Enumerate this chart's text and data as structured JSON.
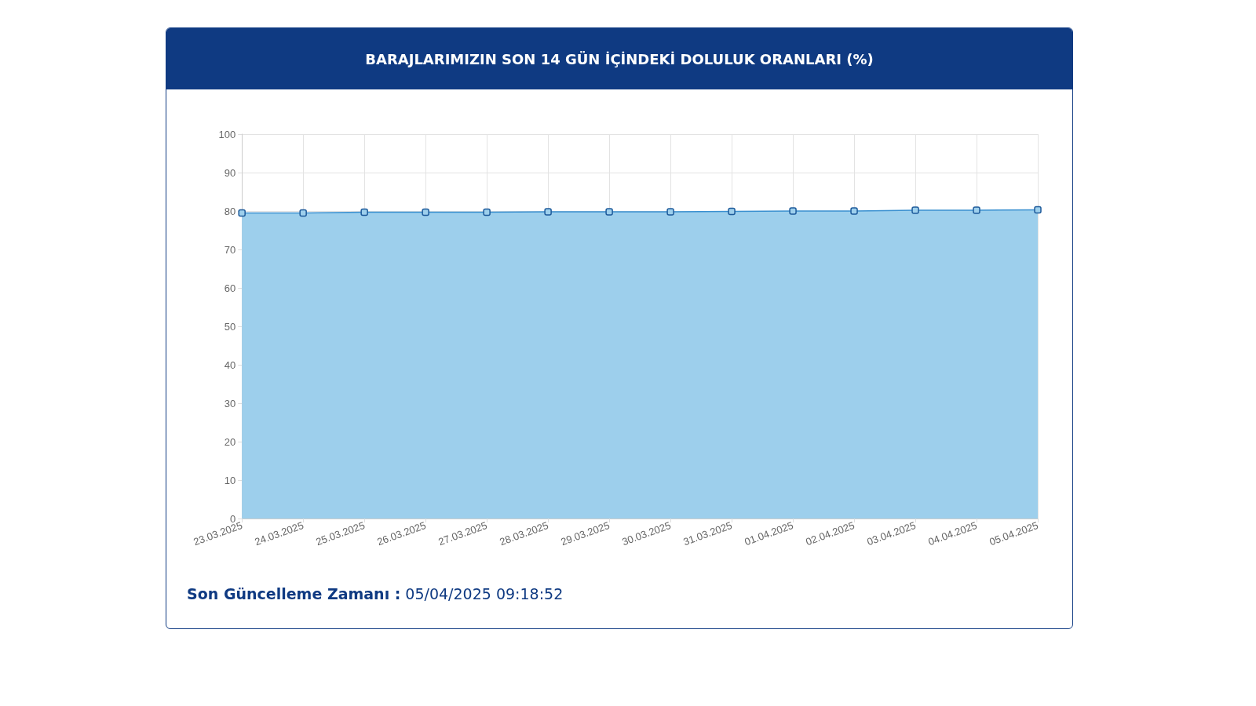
{
  "chart_data": {
    "type": "area",
    "title": "BARAJLARIMIZIN SON 14 GÜN İÇİNDEKİ DOLULUK ORANLARI (%)",
    "categories": [
      "23.03.2025",
      "24.03.2025",
      "25.03.2025",
      "26.03.2025",
      "27.03.2025",
      "28.03.2025",
      "29.03.2025",
      "30.03.2025",
      "31.03.2025",
      "01.04.2025",
      "02.04.2025",
      "03.04.2025",
      "04.04.2025",
      "05.04.2025"
    ],
    "series": [
      {
        "color": "#9dcfec",
        "values": [
          79.5,
          79.5,
          79.7,
          79.7,
          79.7,
          79.8,
          79.8,
          79.8,
          79.9,
          80.0,
          80.0,
          80.2,
          80.2,
          80.3
        ]
      }
    ],
    "ylim": [
      0,
      100
    ],
    "yticks": [
      0,
      10,
      20,
      30,
      40,
      50,
      60,
      70,
      80,
      90,
      100
    ],
    "grid": true,
    "marker": "square",
    "line_style": "solid",
    "annotations": [
      "Son Güncelleme Zamanı :",
      "05/04/2025 09:18:52"
    ]
  }
}
